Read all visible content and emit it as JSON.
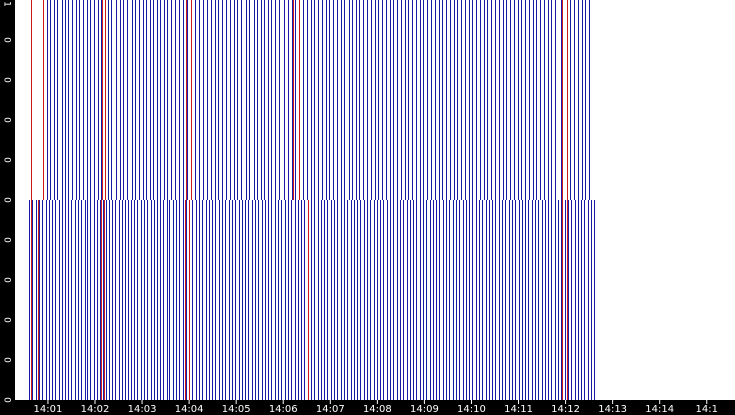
{
  "chart_data": {
    "type": "event-timeline",
    "colors": {
      "background": "#ffffff",
      "axis_band": "#000000",
      "axis_text": "#ffffff",
      "event_primary": "#1a1aa8",
      "event_alert": "#cc1a1a"
    },
    "grid": false,
    "y_axis": {
      "tick_labels": [
        "1",
        "0",
        "0",
        "0",
        "0",
        "0",
        "0",
        "0",
        "0",
        "0",
        "0"
      ]
    },
    "x_axis": {
      "tick_labels": [
        "14:01",
        "14:02",
        "14:03",
        "14:04",
        "14:05",
        "14:06",
        "14:07",
        "14:08",
        "14:09",
        "14:10",
        "14:11",
        "14:12",
        "14:13",
        "14:14",
        "14:1"
      ],
      "range_minutes": [
        0.3,
        15.6
      ],
      "tick_minutes": [
        1,
        2,
        3,
        4,
        5,
        6,
        7,
        8,
        9,
        10,
        11,
        12,
        13,
        14,
        15
      ]
    },
    "upper_events": {
      "level": [
        0.5,
        1.0
      ],
      "primary": [
        0.97,
        1.04,
        1.12,
        1.2,
        1.29,
        1.36,
        1.43,
        1.51,
        1.59,
        1.67,
        1.74,
        1.82,
        1.9,
        1.98,
        2.06,
        2.12,
        2.21,
        2.28,
        2.33,
        2.45,
        2.53,
        2.6,
        2.69,
        2.78,
        2.86,
        2.93,
        3.02,
        3.08,
        3.16,
        3.24,
        3.32,
        3.39,
        3.47,
        3.54,
        3.62,
        3.71,
        3.79,
        3.87,
        3.95,
        4.03,
        4.13,
        4.21,
        4.29,
        4.38,
        4.46,
        4.54,
        4.61,
        4.7,
        4.79,
        4.86,
        4.96,
        5.02,
        5.11,
        5.2,
        5.28,
        5.37,
        5.44,
        5.52,
        5.6,
        5.67,
        5.75,
        5.82,
        5.9,
        6.02,
        6.1,
        6.18,
        6.26,
        6.33,
        6.42,
        6.5,
        6.58,
        6.66,
        6.74,
        6.82,
        6.9,
        6.97,
        7.06,
        7.14,
        7.22,
        7.3,
        7.39,
        7.46,
        7.54,
        7.62,
        7.7,
        7.78,
        7.86,
        7.94,
        8.02,
        8.1,
        8.18,
        8.26,
        8.34,
        8.42,
        8.5,
        8.58,
        8.66,
        8.74,
        8.82,
        8.9,
        8.98,
        9.06,
        9.14,
        9.22,
        9.3,
        9.38,
        9.46,
        9.54,
        9.62,
        9.7,
        9.78,
        9.86,
        9.94,
        10.02,
        10.1,
        10.18,
        10.26,
        10.34,
        10.42,
        10.5,
        10.58,
        10.66,
        10.74,
        10.82,
        10.9,
        10.98,
        11.06,
        11.14,
        11.22,
        11.3,
        11.38,
        11.46,
        11.54,
        11.62,
        11.7,
        11.78,
        11.9,
        12.02,
        12.1,
        12.18,
        12.26,
        12.34,
        12.41,
        12.5
      ],
      "alert": [
        0.64,
        0.89,
        2.15,
        2.22,
        3.93,
        4.05,
        6.2,
        6.34,
        11.93,
        12.03
      ]
    },
    "lower_events": {
      "level": [
        0.0,
        0.5
      ],
      "primary": [
        0.6,
        0.67,
        0.74,
        0.8,
        0.88,
        0.95,
        1.02,
        1.09,
        1.16,
        1.23,
        1.29,
        1.36,
        1.43,
        1.5,
        1.57,
        1.64,
        1.71,
        1.78,
        1.84,
        1.9,
        1.97,
        2.04,
        2.1,
        2.16,
        2.23,
        2.3,
        2.37,
        2.43,
        2.5,
        2.57,
        2.63,
        2.7,
        2.77,
        2.83,
        2.9,
        2.97,
        3.04,
        3.11,
        3.18,
        3.25,
        3.32,
        3.39,
        3.45,
        3.52,
        3.58,
        3.65,
        3.72,
        3.79,
        3.86,
        3.93,
        4.0,
        4.07,
        4.14,
        4.21,
        4.28,
        4.35,
        4.42,
        4.49,
        4.56,
        4.63,
        4.7,
        4.77,
        4.84,
        4.91,
        4.98,
        5.05,
        5.12,
        5.19,
        5.26,
        5.33,
        5.4,
        5.47,
        5.54,
        5.61,
        5.68,
        5.75,
        5.82,
        5.89,
        5.96,
        6.03,
        6.1,
        6.17,
        6.24,
        6.31,
        6.38,
        6.45,
        6.52,
        6.59,
        6.66,
        6.73,
        6.8,
        6.87,
        6.94,
        7.01,
        7.08,
        7.15,
        7.22,
        7.29,
        7.36,
        7.43,
        7.5,
        7.57,
        7.64,
        7.71,
        7.78,
        7.85,
        7.92,
        7.99,
        8.06,
        8.13,
        8.2,
        8.27,
        8.34,
        8.41,
        8.48,
        8.55,
        8.62,
        8.69,
        8.76,
        8.83,
        8.9,
        8.97,
        9.04,
        9.11,
        9.18,
        9.25,
        9.32,
        9.39,
        9.46,
        9.53,
        9.6,
        9.67,
        9.74,
        9.81,
        9.88,
        9.95,
        10.02,
        10.09,
        10.16,
        10.23,
        10.3,
        10.37,
        10.44,
        10.51,
        10.58,
        10.65,
        10.72,
        10.79,
        10.86,
        10.93,
        11.0,
        11.07,
        11.14,
        11.21,
        11.28,
        11.35,
        11.42,
        11.49,
        11.56,
        11.63,
        11.7,
        11.77,
        11.84,
        11.91,
        11.98,
        12.05,
        12.12,
        12.19,
        12.26,
        12.33,
        12.4,
        12.47,
        12.54,
        12.61
      ],
      "alert": [
        0.63,
        0.79,
        2.12,
        2.2,
        3.91,
        4.0,
        6.53,
        11.92,
        12.02
      ]
    }
  }
}
